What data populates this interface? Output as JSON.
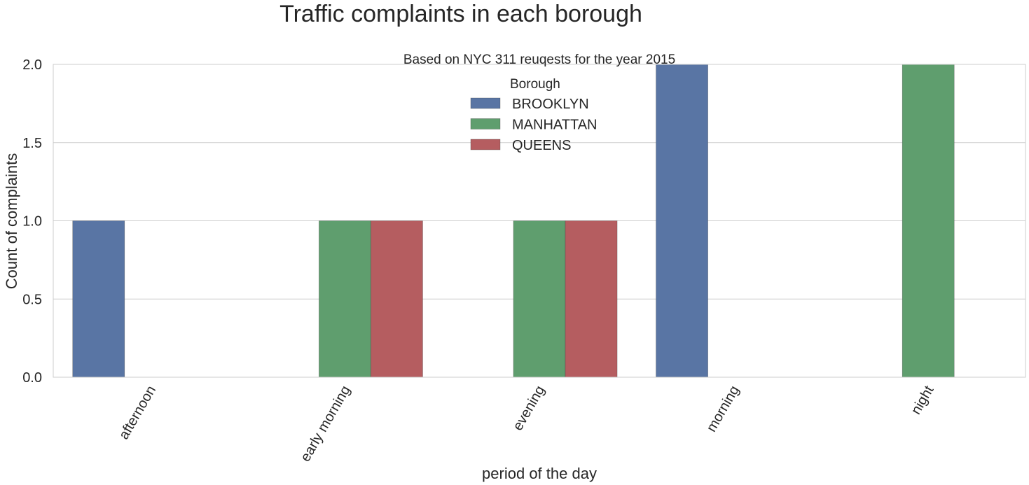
{
  "figure": {
    "title": "Traffic complaints in each borough"
  },
  "chart_data": {
    "type": "bar",
    "title": "Based on NYC 311 reuqests for the year 2015",
    "xlabel": "period of the day",
    "ylabel": "Count of complaints",
    "categories": [
      "afternoon",
      "early morning",
      "evening",
      "morning",
      "night"
    ],
    "series": [
      {
        "name": "BROOKLYN",
        "color": "#5975a4",
        "values": [
          1,
          0,
          0,
          2,
          0
        ]
      },
      {
        "name": "MANHATTAN",
        "color": "#5f9e6e",
        "values": [
          0,
          1,
          1,
          0,
          2
        ]
      },
      {
        "name": "QUEENS",
        "color": "#b55d60",
        "values": [
          0,
          1,
          1,
          0,
          0
        ]
      }
    ],
    "ylim": [
      0,
      2.0
    ],
    "yticks": [
      0.0,
      0.5,
      1.0,
      1.5,
      2.0
    ],
    "ytick_labels": [
      "0.0",
      "0.5",
      "1.0",
      "1.5",
      "2.0"
    ],
    "grid": true,
    "legend": {
      "title": "Borough",
      "placement": "upper center"
    }
  }
}
